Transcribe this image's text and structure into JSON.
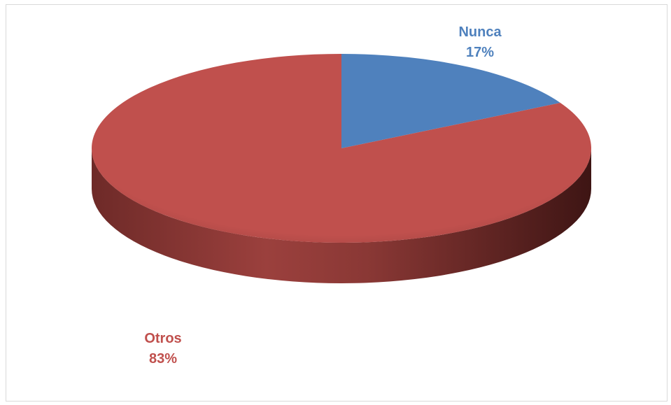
{
  "chart_data": {
    "type": "pie",
    "style": "3d",
    "slices": [
      {
        "label": "Nunca",
        "value": 17,
        "value_label": "17%",
        "color": "#4f81bd",
        "side_color": "#37598a"
      },
      {
        "label": "Otros",
        "value": 83,
        "value_label": "83%",
        "color": "#c0504d",
        "side_color": "#5c2220"
      }
    ],
    "label_colors": {
      "Nunca": "#4f81bd",
      "Otros": "#c0504d"
    },
    "start_angle_deg": 0,
    "direction": "clockwise"
  }
}
